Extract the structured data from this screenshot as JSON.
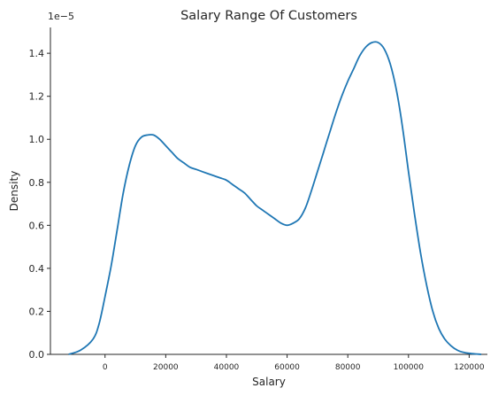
{
  "chart_data": {
    "type": "line",
    "title": "Salary Range Of Customers",
    "xlabel": "Salary",
    "ylabel": "Density",
    "y_scale_label": "1e−5",
    "xlim": [
      -18000,
      126000
    ],
    "ylim": [
      0,
      1.52
    ],
    "xticks": [
      0,
      20000,
      40000,
      60000,
      80000,
      100000,
      120000
    ],
    "xtick_labels": [
      "0",
      "20000",
      "40000",
      "60000",
      "80000",
      "100000",
      "120000"
    ],
    "yticks": [
      0.0,
      0.2,
      0.4,
      0.6,
      0.8,
      1.0,
      1.2,
      1.4
    ],
    "ytick_labels": [
      "0.0",
      "0.2",
      "0.4",
      "0.6",
      "0.8",
      "1.0",
      "1.2",
      "1.4"
    ],
    "grid": false,
    "color": "#1f77b4",
    "series": [
      {
        "x": [
          -12000,
          -8000,
          -4000,
          -2000,
          0,
          2000,
          4000,
          6000,
          8000,
          10000,
          12000,
          14000,
          16000,
          18000,
          20000,
          22000,
          24000,
          26000,
          28000,
          30000,
          32000,
          34000,
          36000,
          38000,
          40000,
          42000,
          44000,
          46000,
          48000,
          50000,
          52000,
          54000,
          56000,
          58000,
          60000,
          62000,
          64000,
          66000,
          68000,
          70000,
          72000,
          74000,
          76000,
          78000,
          80000,
          82000,
          84000,
          86000,
          88000,
          90000,
          92000,
          94000,
          96000,
          98000,
          100000,
          102000,
          104000,
          106000,
          108000,
          110000,
          112000,
          114000,
          116000,
          118000,
          120000,
          122000,
          124000
        ],
        "y": [
          0.0,
          0.02,
          0.07,
          0.14,
          0.27,
          0.41,
          0.58,
          0.75,
          0.88,
          0.97,
          1.01,
          1.02,
          1.02,
          1.0,
          0.97,
          0.94,
          0.91,
          0.89,
          0.87,
          0.86,
          0.85,
          0.84,
          0.83,
          0.82,
          0.81,
          0.79,
          0.77,
          0.75,
          0.72,
          0.69,
          0.67,
          0.65,
          0.63,
          0.61,
          0.6,
          0.61,
          0.63,
          0.68,
          0.76,
          0.85,
          0.94,
          1.03,
          1.12,
          1.2,
          1.27,
          1.33,
          1.39,
          1.43,
          1.45,
          1.45,
          1.42,
          1.35,
          1.23,
          1.06,
          0.85,
          0.65,
          0.47,
          0.32,
          0.2,
          0.12,
          0.07,
          0.04,
          0.02,
          0.01,
          0.005,
          0.002,
          0.0
        ]
      }
    ]
  }
}
